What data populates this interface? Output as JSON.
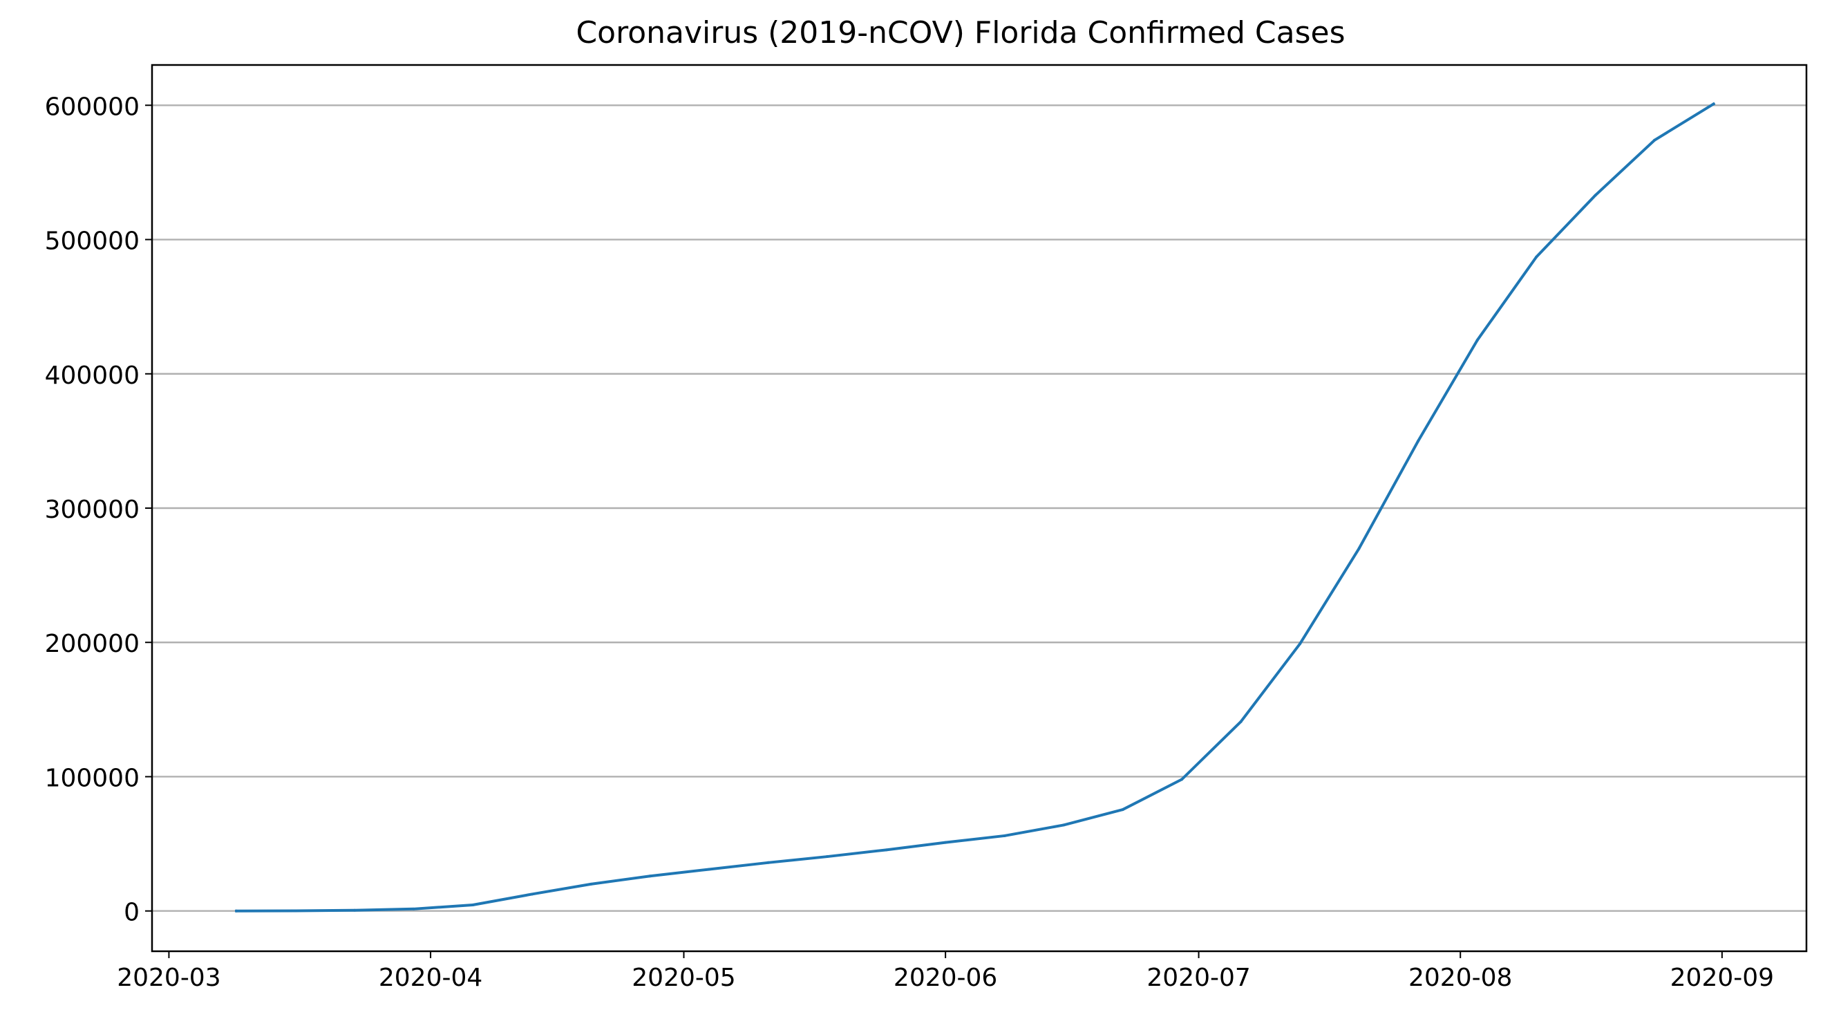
{
  "chart_data": {
    "type": "line",
    "title": "Coronavirus (2019-nCOV) Florida Confirmed Cases",
    "xlabel": "",
    "ylabel": "",
    "x_axis_type": "date",
    "xlim": [
      "2020-02-28",
      "2020-09-11"
    ],
    "ylim": [
      -30000,
      630000
    ],
    "grid": "y-major",
    "legend": "none",
    "x_ticks": [
      "2020-03",
      "2020-04",
      "2020-05",
      "2020-06",
      "2020-07",
      "2020-08",
      "2020-09"
    ],
    "x_tick_dates": [
      "2020-03-01",
      "2020-04-01",
      "2020-05-01",
      "2020-06-01",
      "2020-07-01",
      "2020-08-01",
      "2020-09-01"
    ],
    "y_ticks": [
      0,
      100000,
      200000,
      300000,
      400000,
      500000,
      600000
    ],
    "y_tick_labels": [
      "0",
      "100000",
      "200000",
      "300000",
      "400000",
      "500000",
      "600000"
    ],
    "series": [
      {
        "name": "Florida confirmed cases",
        "color": "#1f77b4",
        "x": [
          "2020-03-09",
          "2020-03-16",
          "2020-03-23",
          "2020-03-30",
          "2020-04-06",
          "2020-04-13",
          "2020-04-20",
          "2020-04-27",
          "2020-05-04",
          "2020-05-11",
          "2020-05-18",
          "2020-05-25",
          "2020-06-01",
          "2020-06-08",
          "2020-06-15",
          "2020-06-22",
          "2020-06-29",
          "2020-07-06",
          "2020-07-13",
          "2020-07-20",
          "2020-07-27",
          "2020-08-03",
          "2020-08-10",
          "2020-08-17",
          "2020-08-24",
          "2020-08-31"
        ],
        "values": [
          0,
          100,
          500,
          1500,
          4500,
          12500,
          20000,
          26000,
          31000,
          36000,
          40500,
          45500,
          51000,
          56000,
          64000,
          75500,
          98000,
          141000,
          199000,
          270000,
          350000,
          425000,
          487000,
          533000,
          574000,
          601000
        ]
      }
    ]
  }
}
